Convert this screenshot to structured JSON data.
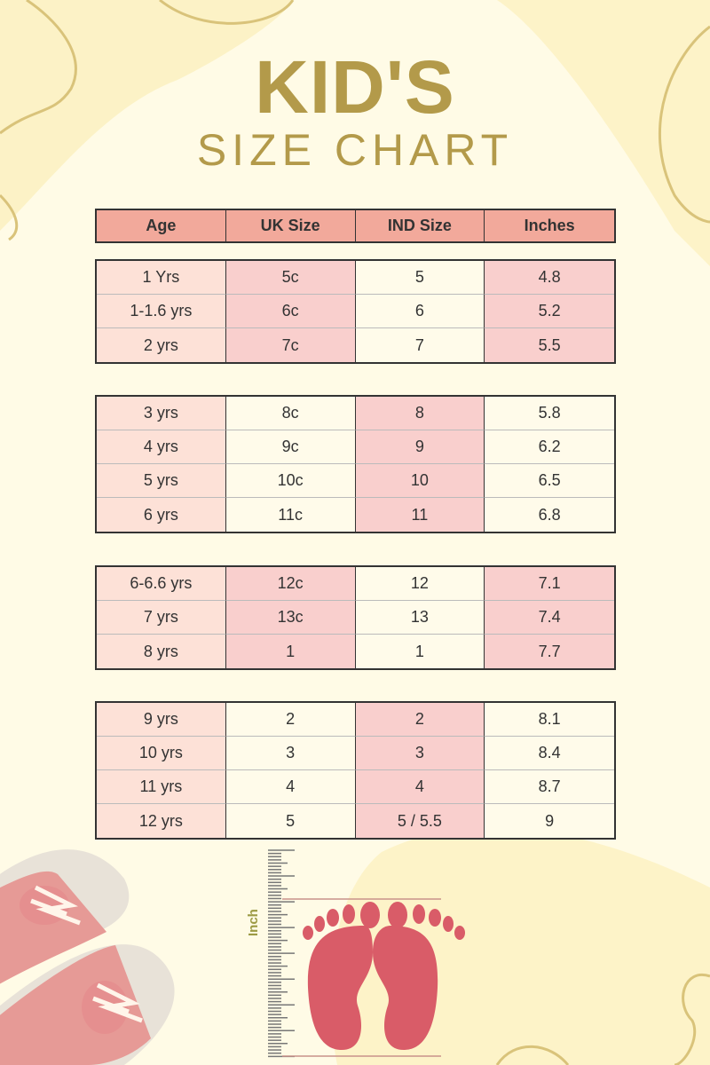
{
  "title": {
    "line1": "KID'S",
    "line2": "SIZE  CHART"
  },
  "colors": {
    "header": "#f2a99b",
    "peach": "#fde1d7",
    "pink": "#f9cfcd",
    "cream": "#fffbea",
    "gold": "#b39a4a",
    "foot": "#d95c68"
  },
  "table": {
    "headers": [
      "Age",
      "UK Size",
      "IND Size",
      "Inches"
    ],
    "groups": [
      {
        "rows": [
          [
            "1 Yrs",
            "5c",
            "5",
            "4.8"
          ],
          [
            "1-1.6 yrs",
            "6c",
            "6",
            "5.2"
          ],
          [
            "2 yrs",
            "7c",
            "7",
            "5.5"
          ]
        ]
      },
      {
        "rows": [
          [
            "3 yrs",
            "8c",
            "8",
            "5.8"
          ],
          [
            "4 yrs",
            "9c",
            "9",
            "6.2"
          ],
          [
            "5 yrs",
            "10c",
            "10",
            "6.5"
          ],
          [
            "6 yrs",
            "11c",
            "11",
            "6.8"
          ]
        ]
      },
      {
        "rows": [
          [
            "6-6.6 yrs",
            "12c",
            "12",
            "7.1"
          ],
          [
            "7 yrs",
            "13c",
            "13",
            "7.4"
          ],
          [
            "8 yrs",
            "1",
            "1",
            "7.7"
          ]
        ]
      },
      {
        "rows": [
          [
            "9 yrs",
            "2",
            "2",
            "8.1"
          ],
          [
            "10 yrs",
            "3",
            "3",
            "8.4"
          ],
          [
            "11 yrs",
            "4",
            "4",
            "8.7"
          ],
          [
            "12 yrs",
            "5",
            "5 / 5.5",
            "9"
          ]
        ]
      }
    ]
  },
  "ruler": {
    "label": "Inch"
  },
  "icons": [
    "shoes-illustration",
    "ruler-icon",
    "footprints-illustration"
  ]
}
